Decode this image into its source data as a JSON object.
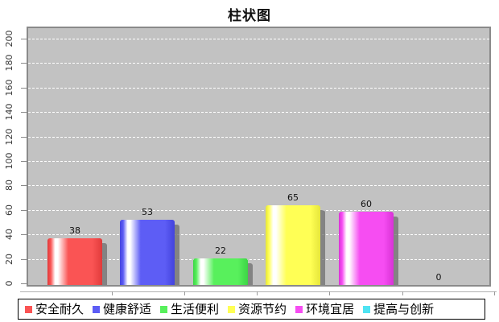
{
  "chart_data": {
    "type": "bar",
    "title": "柱状图",
    "categories": [
      "安全耐久",
      "健康舒适",
      "生活便利",
      "资源节约",
      "环境宜居",
      "提高与创新"
    ],
    "values": [
      38,
      53,
      22,
      65,
      60,
      0
    ],
    "value_labels": [
      "38",
      "53",
      "22",
      "65",
      "60",
      "0"
    ],
    "colors": [
      {
        "base": "#fa5454",
        "dark": "#e03a3a"
      },
      {
        "base": "#5d5df5",
        "dark": "#4343dd"
      },
      {
        "base": "#58f05c",
        "dark": "#3cd445"
      },
      {
        "base": "#ffff55",
        "dark": "#e6e63a"
      },
      {
        "base": "#f64df2",
        "dark": "#d832d6"
      },
      {
        "base": "#4fe3f2",
        "dark": "#35c6da"
      }
    ],
    "xlabel": "",
    "ylabel": "",
    "ylim": [
      0,
      200
    ],
    "ytick_step": 20,
    "ytick_labels": [
      "0",
      "20",
      "40",
      "60",
      "80",
      "100",
      "120",
      "140",
      "160",
      "180",
      "200"
    ],
    "grid": {
      "show": true,
      "style": "dashed",
      "color": "#ffffff"
    },
    "plot_bg": "#c2c2c2",
    "legend": {
      "position": "bottom",
      "entries": [
        {
          "label": "安全耐久",
          "color": "#fa5454"
        },
        {
          "label": "健康舒适",
          "color": "#5d5df5"
        },
        {
          "label": "生活便利",
          "color": "#58f05c"
        },
        {
          "label": "资源节约",
          "color": "#ffff55"
        },
        {
          "label": "环境宜居",
          "color": "#f64df2"
        },
        {
          "label": "提高与创新",
          "color": "#4fe3f2"
        }
      ]
    }
  }
}
